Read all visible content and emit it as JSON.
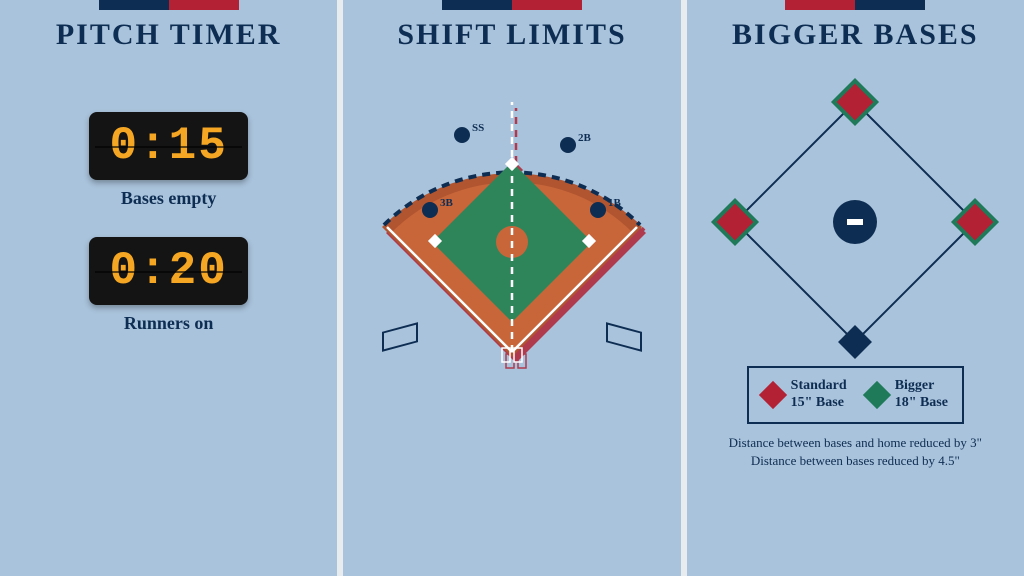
{
  "colors": {
    "panel_bg": "#a9c3dc",
    "title": "#0e2d52",
    "text": "#0e2d52",
    "red": "#b22234",
    "navy": "#0e2d52",
    "white": "#ffffff",
    "timer_digit": "#f5a623",
    "timer_bg": "#141414",
    "dirt": "#c8663a",
    "dirt_dark": "#b05530",
    "grass": "#2f855a",
    "fielder": "#0e2d52",
    "foul_line": "#ffffff",
    "base_standard": "#b22234",
    "base_bigger": "#1f7a5a",
    "diamond_stroke": "#0e2d52",
    "legend_border": "#0e2d52"
  },
  "panel1": {
    "title": "PITCH TIMER",
    "timer_a": "0:15",
    "label_a": "Bases empty",
    "timer_b": "0:20",
    "label_b": "Runners on"
  },
  "panel2": {
    "title": "SHIFT LIMITS",
    "positions": {
      "ss": "SS",
      "second": "2B",
      "third": "3B",
      "first": "1B"
    }
  },
  "panel3": {
    "title": "BIGGER BASES",
    "legend_standard_l1": "Standard",
    "legend_standard_l2": "15\" Base",
    "legend_bigger_l1": "Bigger",
    "legend_bigger_l2": "18\" Base",
    "footnote_l1": "Distance between bases and home reduced by 3\"",
    "footnote_l2": "Distance between bases reduced by 4.5\""
  }
}
